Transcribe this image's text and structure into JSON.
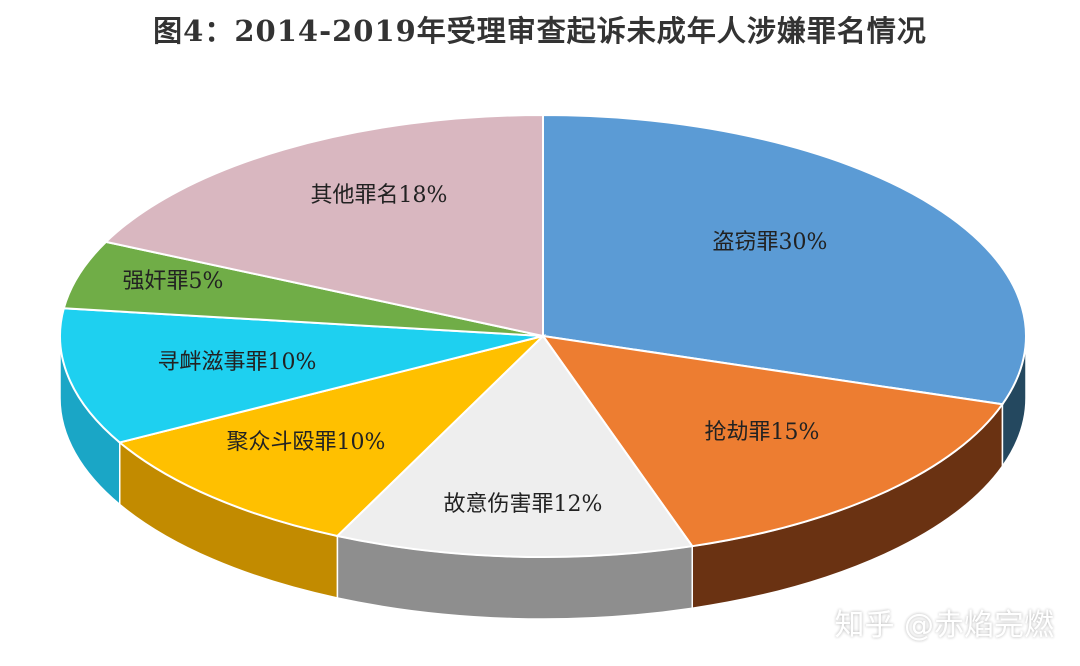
{
  "chart_data": {
    "type": "pie",
    "title": "图4：2014-2019年受理审查起诉未成年人涉嫌罪名情况",
    "slices": [
      {
        "label": "盗窃罪",
        "value": 30,
        "display": "盗窃罪30%",
        "color": "#5B9BD5",
        "side": "#24485F"
      },
      {
        "label": "抢劫罪",
        "value": 15,
        "display": "抢劫罪15%",
        "color": "#ED7D31",
        "side": "#6A3212"
      },
      {
        "label": "故意伤害罪",
        "value": 12,
        "display": "故意伤害罪12%",
        "color": "#EEEEEE",
        "side": "#8E8E8E"
      },
      {
        "label": "聚众斗殴罪",
        "value": 10,
        "display": "聚众斗殴罪10%",
        "color": "#FFC000",
        "side": "#C28B00"
      },
      {
        "label": "寻衅滋事罪",
        "value": 10,
        "display": "寻衅滋事罪10%",
        "color": "#1ED0F0",
        "side": "#1AA6C6"
      },
      {
        "label": "强奸罪",
        "value": 5,
        "display": "强奸罪5%",
        "color": "#70AD47",
        "side": "#4E7D30"
      },
      {
        "label": "其他罪名",
        "value": 18,
        "display": "其他罪名18%",
        "color": "#D9B7C0",
        "side": "#A88C93"
      }
    ]
  },
  "watermark": "知乎 @赤焰完燃"
}
